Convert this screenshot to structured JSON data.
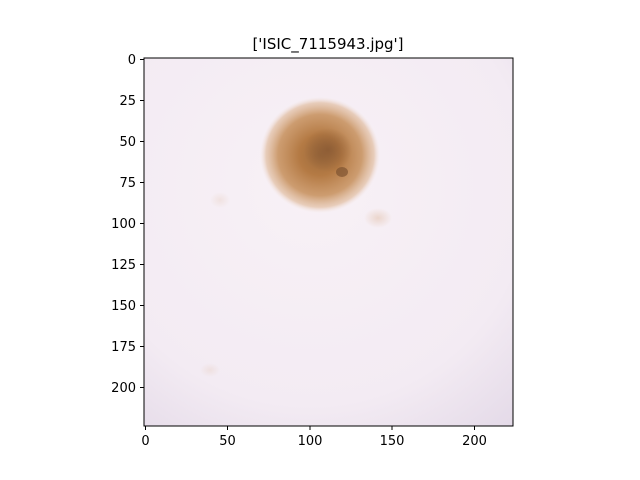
{
  "figure": {
    "title": "['ISIC_7115943.jpg']"
  },
  "image": {
    "content": "dermoscopic skin lesion",
    "background_color": "#f6eef4",
    "lesion_color": "#b97a45"
  },
  "axes": {
    "xlim": [
      0,
      224
    ],
    "ylim": [
      224,
      0
    ],
    "x_ticks": [
      0,
      50,
      100,
      150,
      200
    ],
    "y_ticks": [
      0,
      25,
      50,
      75,
      100,
      125,
      150,
      175,
      200
    ]
  }
}
